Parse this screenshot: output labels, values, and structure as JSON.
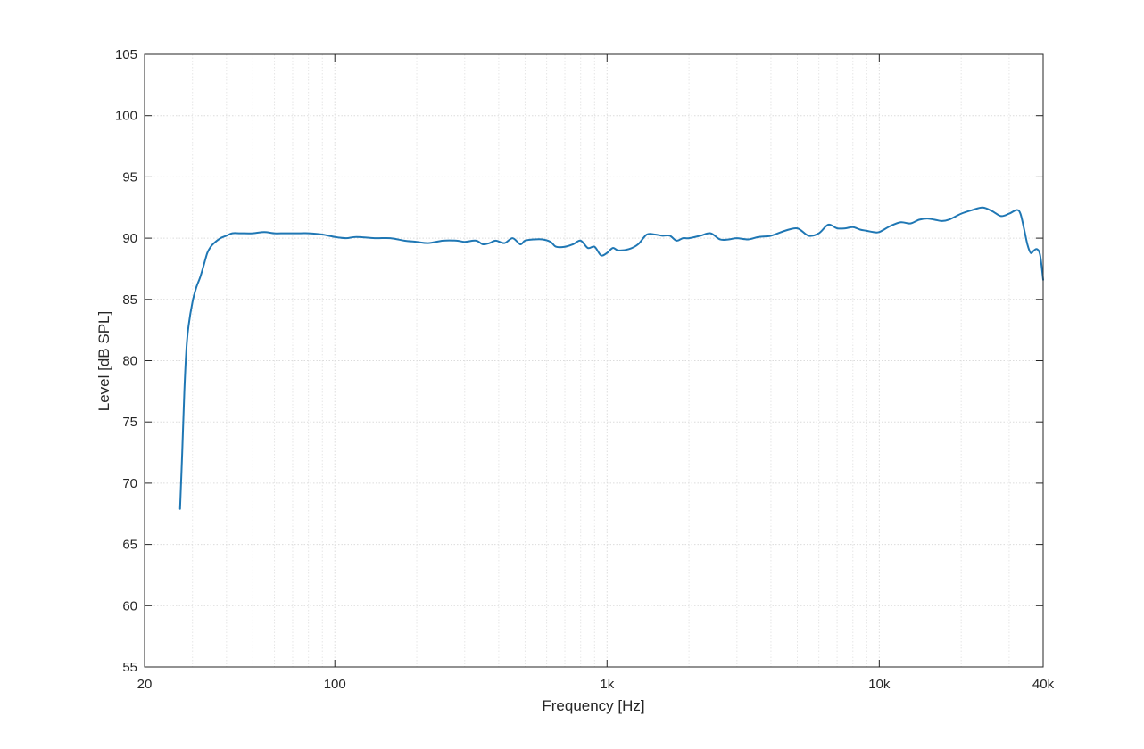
{
  "chart_data": {
    "type": "line",
    "title": "",
    "xlabel": "Frequency [Hz]",
    "ylabel": "Level [dB SPL]",
    "x_scale": "log",
    "xlim": [
      20,
      40000
    ],
    "ylim": [
      55,
      105
    ],
    "x_ticks": [
      20,
      100,
      1000,
      10000,
      40000
    ],
    "x_tick_labels": [
      "20",
      "100",
      "1k",
      "10k",
      "40k"
    ],
    "y_ticks": [
      55,
      60,
      65,
      70,
      75,
      80,
      85,
      90,
      95,
      100,
      105
    ],
    "y_tick_labels": [
      "55",
      "60",
      "65",
      "70",
      "75",
      "80",
      "85",
      "90",
      "95",
      "100",
      "105"
    ],
    "grid": true,
    "minor_grid": true,
    "line_color": "#1f77b4",
    "series": [
      {
        "x": [
          27,
          27.5,
          28,
          28.5,
          29,
          30,
          31,
          32,
          33,
          34,
          35,
          36,
          38,
          40,
          42,
          45,
          50,
          55,
          60,
          65,
          70,
          75,
          80,
          90,
          100,
          110,
          120,
          140,
          160,
          180,
          200,
          220,
          250,
          280,
          300,
          330,
          350,
          370,
          390,
          420,
          450,
          480,
          500,
          540,
          580,
          620,
          650,
          700,
          750,
          800,
          850,
          900,
          950,
          1000,
          1050,
          1100,
          1200,
          1300,
          1400,
          1500,
          1600,
          1700,
          1800,
          1900,
          2000,
          2200,
          2400,
          2600,
          2800,
          3000,
          3300,
          3600,
          4000,
          4500,
          5000,
          5500,
          6000,
          6500,
          7000,
          7500,
          8000,
          8500,
          9000,
          9500,
          10000,
          11000,
          12000,
          13000,
          14000,
          15000,
          16000,
          17000,
          18000,
          20000,
          22000,
          24000,
          26000,
          28000,
          30000,
          32000,
          33000,
          34000,
          35000,
          36000,
          37000,
          38000,
          39000,
          40000
        ],
        "y": [
          67.9,
          72.5,
          77.5,
          81.0,
          82.8,
          84.8,
          86.0,
          86.8,
          87.8,
          88.8,
          89.3,
          89.6,
          90.0,
          90.2,
          90.4,
          90.4,
          90.4,
          90.5,
          90.4,
          90.4,
          90.4,
          90.4,
          90.4,
          90.3,
          90.1,
          90.0,
          90.1,
          90.0,
          90.0,
          89.8,
          89.7,
          89.6,
          89.8,
          89.8,
          89.7,
          89.8,
          89.5,
          89.6,
          89.8,
          89.6,
          90.0,
          89.5,
          89.8,
          89.9,
          89.9,
          89.7,
          89.3,
          89.3,
          89.5,
          89.8,
          89.2,
          89.3,
          88.6,
          88.8,
          89.2,
          89.0,
          89.1,
          89.5,
          90.3,
          90.3,
          90.2,
          90.2,
          89.8,
          90.0,
          90.0,
          90.2,
          90.4,
          89.9,
          89.9,
          90.0,
          89.9,
          90.1,
          90.2,
          90.6,
          90.8,
          90.2,
          90.4,
          91.1,
          90.8,
          90.8,
          90.9,
          90.7,
          90.6,
          90.5,
          90.5,
          91.0,
          91.3,
          91.2,
          91.5,
          91.6,
          91.5,
          91.4,
          91.5,
          92.0,
          92.3,
          92.5,
          92.2,
          91.8,
          92.0,
          92.3,
          92.0,
          90.8,
          89.5,
          88.8,
          89.0,
          89.1,
          88.6,
          86.6
        ]
      }
    ]
  }
}
